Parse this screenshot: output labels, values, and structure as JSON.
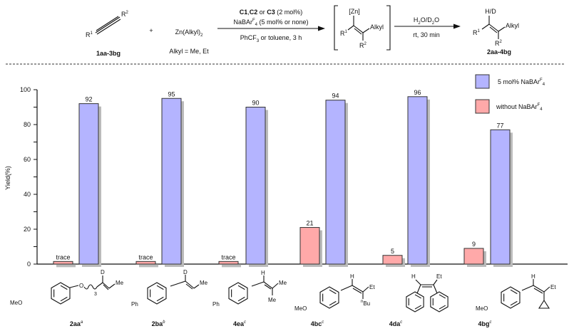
{
  "scheme": {
    "substrate": {
      "r1": "R",
      "r1_sup": "1",
      "r2": "R",
      "r2_sup": "2",
      "label": "1aa-3bg"
    },
    "plus": "+",
    "reagent": {
      "formula": "Zn(Alkyl)",
      "formula_sub": "2",
      "note": "Alkyl = Me, Et"
    },
    "step1": {
      "line1_bold": "C1",
      "line1_sep1": ",",
      "line1_bold2": "C2",
      "line1_mid": " or ",
      "line1_bold3": "C3",
      "line1_end": " (2 mol%)",
      "line2_a": "NaBAr",
      "line2_sup": "F",
      "line2_sub": "4",
      "line2_b": " (5 mol% or none)",
      "line3_a": "PhCF",
      "line3_sub": "3",
      "line3_b": " or toluene, 3 h"
    },
    "intermediate": {
      "metal": "[Zn]",
      "r1": "R",
      "r1_sup": "1",
      "alkyl": "Alkyl",
      "r2": "R",
      "r2_sup": "2"
    },
    "step2": {
      "line1_a": "H",
      "line1_sub1": "2",
      "line1_b": "O/D",
      "line1_sub2": "2",
      "line1_c": "O",
      "line2": "rt, 30 min"
    },
    "product": {
      "hd": "H/D",
      "r1": "R",
      "r1_sup": "1",
      "alkyl": "Alkyl",
      "r2": "R",
      "r2_sup": "2",
      "label": "2aa-4bg"
    }
  },
  "chart_data": {
    "type": "bar",
    "ylabel": "Yield(%)",
    "ylim": [
      0,
      100
    ],
    "yticks": [
      "0",
      "20",
      "40",
      "60",
      "80",
      "100"
    ],
    "legend_position": "top-right",
    "categories": [
      "2aa",
      "2ba",
      "4ea",
      "4bc",
      "4da",
      "4bg"
    ],
    "category_footnotes": [
      "a",
      "b",
      "c",
      "c",
      "c",
      "c"
    ],
    "series": [
      {
        "name_a": "without NaBAr",
        "name_sup": "F",
        "name_sub": "4",
        "color": "#ffa9a9",
        "values": [
          1.5,
          1.5,
          1.5,
          21,
          5,
          9
        ],
        "labels": [
          "trace",
          "trace",
          "trace",
          "21",
          "5",
          "9"
        ]
      },
      {
        "name_a": "5 mol% NaBAr",
        "name_sup": "F",
        "name_sub": "4",
        "color": "#b4b4ff",
        "values": [
          92,
          95,
          90,
          94,
          96,
          77
        ],
        "labels": [
          "92",
          "95",
          "90",
          "94",
          "96",
          "77"
        ]
      }
    ]
  },
  "structures": {
    "s2aa": {
      "meo": "MeO",
      "o": "O",
      "n": "3",
      "d": "D",
      "me": "Me"
    },
    "s2ba": {
      "ph": "Ph",
      "d": "D",
      "me": "Me"
    },
    "s4ea": {
      "ph": "Ph",
      "h": "H",
      "me1": "Me",
      "me2": "Me"
    },
    "s4bc": {
      "meo": "MeO",
      "h": "H",
      "et": "Et",
      "bu_pre": "n",
      "bu": "Bu"
    },
    "s4da": {
      "h": "H",
      "et": "Et"
    },
    "s4bg": {
      "meo": "MeO",
      "h": "H",
      "et": "Et"
    }
  }
}
